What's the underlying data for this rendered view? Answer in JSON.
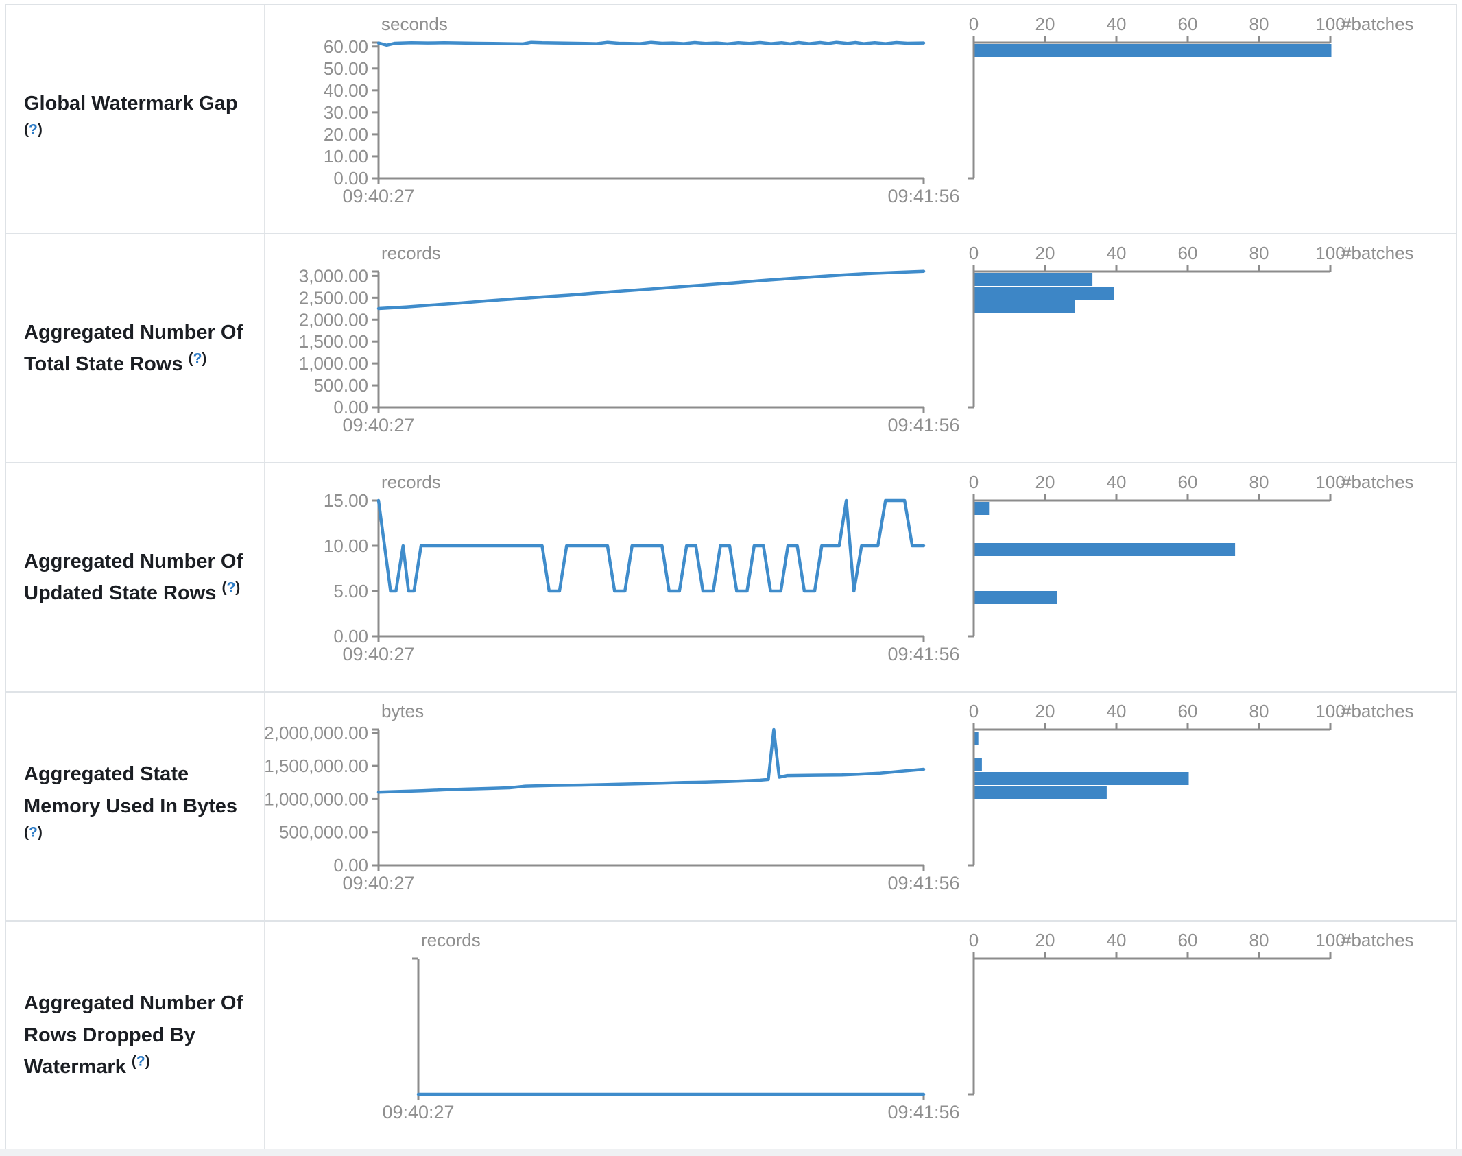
{
  "config": {
    "line_color": "#3f8ccb",
    "bar_color": "#3d86c6",
    "axis_color": "#8c8c8c",
    "tick_label_color": "#8f8f8f",
    "help_color": "#2a7ac6",
    "border_color": "#dee2e6",
    "histogram_axis_label": "#batches",
    "histogram_x_ticks": [
      "0",
      "20",
      "40",
      "60",
      "80",
      "100"
    ]
  },
  "chart_data": [
    {
      "type": "line+histogram",
      "label": "Global Watermark Gap",
      "help": "(?)",
      "unit": "seconds",
      "x_ticks": [
        "09:40:27",
        "09:41:56"
      ],
      "y_ticks": [
        [
          "60.00",
          60
        ],
        [
          "50.00",
          50
        ],
        [
          "40.00",
          40
        ],
        [
          "30.00",
          30
        ],
        [
          "20.00",
          20
        ],
        [
          "10.00",
          10
        ],
        [
          "0.00",
          0
        ]
      ],
      "domain_max": 61.8,
      "axis_left_offset": 0,
      "line": [
        [
          0,
          61.6
        ],
        [
          0.015,
          60.6
        ],
        [
          0.03,
          61.5
        ],
        [
          0.06,
          61.7
        ],
        [
          0.09,
          61.6
        ],
        [
          0.12,
          61.7
        ],
        [
          0.15,
          61.6
        ],
        [
          0.18,
          61.5
        ],
        [
          0.21,
          61.4
        ],
        [
          0.24,
          61.3
        ],
        [
          0.265,
          61.2
        ],
        [
          0.28,
          61.9
        ],
        [
          0.3,
          61.7
        ],
        [
          0.33,
          61.6
        ],
        [
          0.36,
          61.5
        ],
        [
          0.38,
          61.4
        ],
        [
          0.4,
          61.3
        ],
        [
          0.42,
          61.9
        ],
        [
          0.44,
          61.5
        ],
        [
          0.46,
          61.4
        ],
        [
          0.48,
          61.3
        ],
        [
          0.5,
          61.9
        ],
        [
          0.52,
          61.5
        ],
        [
          0.54,
          61.6
        ],
        [
          0.56,
          61.3
        ],
        [
          0.58,
          61.8
        ],
        [
          0.6,
          61.4
        ],
        [
          0.62,
          61.6
        ],
        [
          0.64,
          61.2
        ],
        [
          0.66,
          61.7
        ],
        [
          0.68,
          61.4
        ],
        [
          0.7,
          61.8
        ],
        [
          0.72,
          61.3
        ],
        [
          0.74,
          61.7
        ],
        [
          0.755,
          61.2
        ],
        [
          0.77,
          61.8
        ],
        [
          0.79,
          61.3
        ],
        [
          0.81,
          61.8
        ],
        [
          0.825,
          61.4
        ],
        [
          0.84,
          61.9
        ],
        [
          0.86,
          61.4
        ],
        [
          0.875,
          61.8
        ],
        [
          0.89,
          61.3
        ],
        [
          0.91,
          61.7
        ],
        [
          0.93,
          61.3
        ],
        [
          0.95,
          61.8
        ],
        [
          0.97,
          61.5
        ],
        [
          1,
          61.6
        ]
      ],
      "histogram_bars": [
        {
          "count": 100,
          "y_offset": 2
        }
      ]
    },
    {
      "type": "line+histogram",
      "label": "Aggregated Number Of Total State Rows",
      "help": "(?)",
      "unit": "records",
      "x_ticks": [
        "09:40:27",
        "09:41:56"
      ],
      "y_ticks": [
        [
          "3,000.00",
          3000
        ],
        [
          "2,500.00",
          2500
        ],
        [
          "2,000.00",
          2000
        ],
        [
          "1,500.00",
          1500
        ],
        [
          "1,000.00",
          1000
        ],
        [
          "500.00",
          500
        ],
        [
          "0.00",
          0
        ]
      ],
      "domain_max": 3100,
      "axis_left_offset": 0,
      "line": [
        [
          0,
          2255
        ],
        [
          0.05,
          2290
        ],
        [
          0.1,
          2335
        ],
        [
          0.15,
          2380
        ],
        [
          0.2,
          2430
        ],
        [
          0.25,
          2475
        ],
        [
          0.3,
          2520
        ],
        [
          0.35,
          2560
        ],
        [
          0.4,
          2610
        ],
        [
          0.45,
          2655
        ],
        [
          0.5,
          2700
        ],
        [
          0.55,
          2750
        ],
        [
          0.6,
          2795
        ],
        [
          0.65,
          2840
        ],
        [
          0.7,
          2890
        ],
        [
          0.75,
          2935
        ],
        [
          0.8,
          2980
        ],
        [
          0.85,
          3020
        ],
        [
          0.9,
          3055
        ],
        [
          0.95,
          3080
        ],
        [
          1,
          3105
        ]
      ],
      "histogram_bars": [
        {
          "count": 33,
          "y_offset": 2
        },
        {
          "count": 39,
          "y_offset": 22
        },
        {
          "count": 28,
          "y_offset": 42
        }
      ]
    },
    {
      "type": "line+histogram",
      "label": "Aggregated Number Of Updated State Rows",
      "help": "(?)",
      "unit": "records",
      "x_ticks": [
        "09:40:27",
        "09:41:56"
      ],
      "y_ticks": [
        [
          "15.00",
          15
        ],
        [
          "10.00",
          10
        ],
        [
          "5.00",
          5
        ],
        [
          "0.00",
          0
        ]
      ],
      "domain_max": 15,
      "axis_left_offset": 0,
      "line": [
        [
          0,
          15
        ],
        [
          0.022,
          5
        ],
        [
          0.032,
          5
        ],
        [
          0.045,
          10
        ],
        [
          0.055,
          5
        ],
        [
          0.065,
          5
        ],
        [
          0.078,
          10
        ],
        [
          0.3,
          10
        ],
        [
          0.313,
          5
        ],
        [
          0.332,
          5
        ],
        [
          0.345,
          10
        ],
        [
          0.42,
          10
        ],
        [
          0.433,
          5
        ],
        [
          0.452,
          5
        ],
        [
          0.465,
          10
        ],
        [
          0.52,
          10
        ],
        [
          0.533,
          5
        ],
        [
          0.552,
          5
        ],
        [
          0.565,
          10
        ],
        [
          0.582,
          10
        ],
        [
          0.595,
          5
        ],
        [
          0.614,
          5
        ],
        [
          0.627,
          10
        ],
        [
          0.644,
          10
        ],
        [
          0.657,
          5
        ],
        [
          0.676,
          5
        ],
        [
          0.689,
          10
        ],
        [
          0.706,
          10
        ],
        [
          0.719,
          5
        ],
        [
          0.738,
          5
        ],
        [
          0.751,
          10
        ],
        [
          0.768,
          10
        ],
        [
          0.781,
          5
        ],
        [
          0.8,
          5
        ],
        [
          0.813,
          10
        ],
        [
          0.845,
          10
        ],
        [
          0.858,
          15
        ],
        [
          0.872,
          5
        ],
        [
          0.886,
          10
        ],
        [
          0.916,
          10
        ],
        [
          0.93,
          15
        ],
        [
          0.965,
          15
        ],
        [
          0.979,
          10
        ],
        [
          1,
          10
        ]
      ],
      "histogram_bars": [
        {
          "count": 4,
          "y_offset": 2
        },
        {
          "count": 73,
          "y_offset": 62
        },
        {
          "count": 23,
          "y_offset": 132
        }
      ]
    },
    {
      "type": "line+histogram",
      "label": "Aggregated State Memory Used In Bytes",
      "help": "(?)",
      "unit": "bytes",
      "x_ticks": [
        "09:40:27",
        "09:41:56"
      ],
      "y_ticks": [
        [
          "2,000,000.00",
          2000000
        ],
        [
          "1,500,000.00",
          1500000
        ],
        [
          "1,000,000.00",
          1000000
        ],
        [
          "500,000.00",
          500000
        ],
        [
          "0.00",
          0
        ]
      ],
      "domain_max": 2050000,
      "axis_left_offset": 0,
      "line": [
        [
          0,
          1105000
        ],
        [
          0.04,
          1115000
        ],
        [
          0.08,
          1125000
        ],
        [
          0.12,
          1140000
        ],
        [
          0.16,
          1150000
        ],
        [
          0.2,
          1160000
        ],
        [
          0.24,
          1170000
        ],
        [
          0.27,
          1195000
        ],
        [
          0.32,
          1205000
        ],
        [
          0.37,
          1210000
        ],
        [
          0.42,
          1220000
        ],
        [
          0.47,
          1230000
        ],
        [
          0.52,
          1240000
        ],
        [
          0.56,
          1250000
        ],
        [
          0.6,
          1255000
        ],
        [
          0.64,
          1265000
        ],
        [
          0.67,
          1275000
        ],
        [
          0.7,
          1285000
        ],
        [
          0.715,
          1295000
        ],
        [
          0.725,
          2050000
        ],
        [
          0.735,
          1330000
        ],
        [
          0.75,
          1355000
        ],
        [
          0.8,
          1360000
        ],
        [
          0.85,
          1365000
        ],
        [
          0.88,
          1375000
        ],
        [
          0.92,
          1390000
        ],
        [
          0.96,
          1420000
        ],
        [
          1,
          1450000
        ]
      ],
      "histogram_bars": [
        {
          "count": 1,
          "y_offset": 3
        },
        {
          "count": 2,
          "y_offset": 42
        },
        {
          "count": 60,
          "y_offset": 62
        },
        {
          "count": 37,
          "y_offset": 82
        }
      ]
    },
    {
      "type": "line+histogram",
      "label": "Aggregated Number Of Rows Dropped By Watermark",
      "help": "(?)",
      "unit": "records",
      "x_ticks": [
        "09:40:27",
        "09:41:56"
      ],
      "y_ticks": [],
      "domain_max": 1,
      "axis_left_offset": 58,
      "line": [
        [
          0,
          0
        ],
        [
          1,
          0
        ]
      ],
      "histogram_bars": []
    }
  ]
}
